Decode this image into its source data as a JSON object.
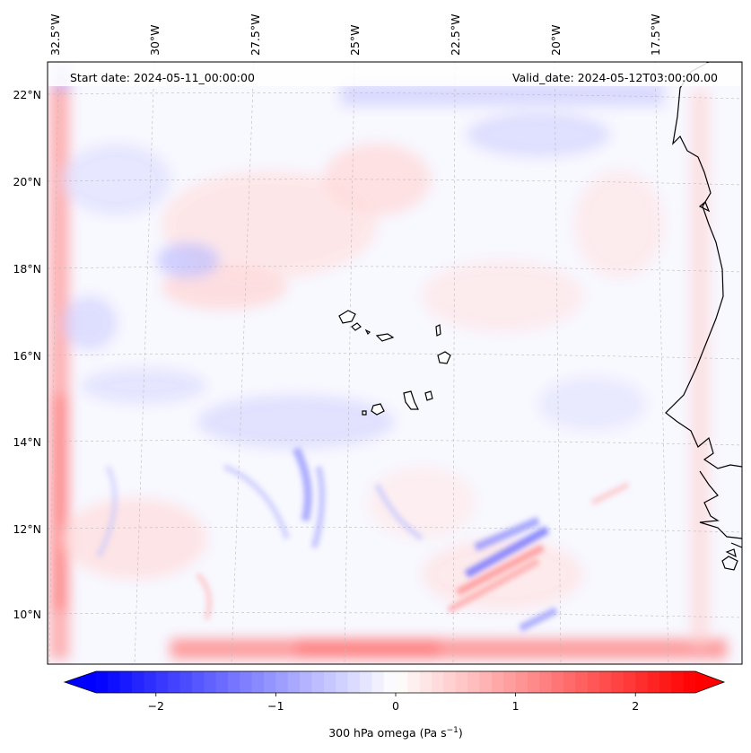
{
  "map": {
    "start_date": "Start date: 2024-05-11_00:00:00",
    "valid_date": "Valid_date: 2024-05-12T03:00:00.00",
    "lon_labels": [
      "32.5°W",
      "30°W",
      "27.5°W",
      "25°W",
      "22.5°W",
      "20°W",
      "17.5°W"
    ],
    "lat_labels": [
      "22°N",
      "20°N",
      "18°N",
      "16°N",
      "14°N",
      "12°N",
      "10°N"
    ],
    "colormap": {
      "negative": "#0000ff",
      "neutral": "#ffffff",
      "positive": "#ff0000"
    },
    "coastline_color": "#000000"
  },
  "colorbar": {
    "ticks": [
      "−2",
      "−1",
      "0",
      "1",
      "2"
    ],
    "tick_values": [
      -2,
      -1,
      0,
      1,
      2
    ],
    "vmin": -2.6,
    "vmax": 2.6,
    "label_main": "300 hPa omega (Pa s",
    "label_exp": "−1",
    "label_end": ")"
  }
}
